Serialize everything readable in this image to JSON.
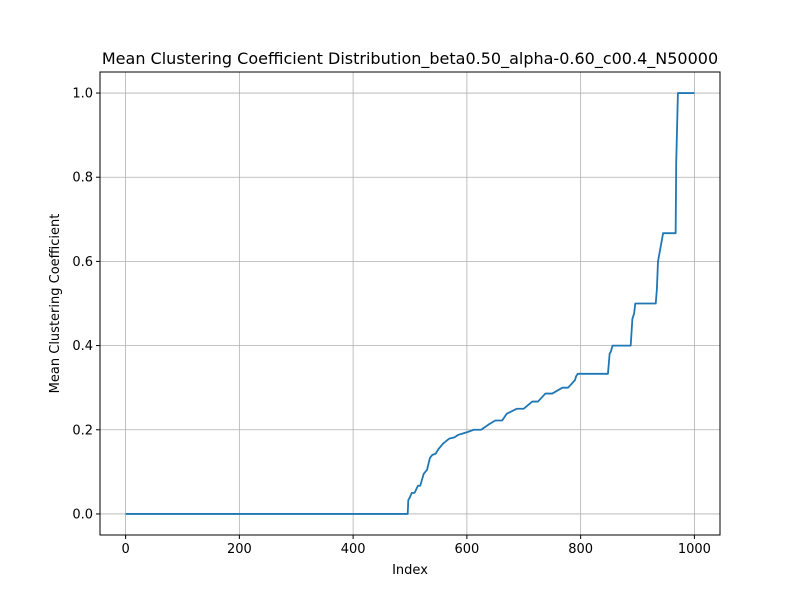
{
  "chart_data": {
    "type": "line",
    "title": "Mean Clustering Coefficient Distribution_beta0.50_alpha-0.60_c00.4_N50000",
    "xlabel": "Index",
    "ylabel": "Mean Clustering Coefficient",
    "xlim": [
      -45,
      1045
    ],
    "ylim": [
      -0.05,
      1.05
    ],
    "xticks": [
      0,
      200,
      400,
      600,
      800,
      1000
    ],
    "xtick_labels": [
      "0",
      "200",
      "400",
      "600",
      "800",
      "1000"
    ],
    "yticks": [
      0.0,
      0.2,
      0.4,
      0.6,
      0.8,
      1.0
    ],
    "ytick_labels": [
      "0.0",
      "0.2",
      "0.4",
      "0.6",
      "0.8",
      "1.0"
    ],
    "grid": true,
    "series": [
      {
        "color": "#1f77b4",
        "x": [
          0,
          496,
          497,
          500,
          503,
          508,
          514,
          518,
          524,
          527,
          530,
          535,
          539,
          545,
          550,
          558,
          569,
          578,
          585,
          590,
          602,
          612,
          625,
          640,
          650,
          662,
          670,
          688,
          700,
          715,
          725,
          738,
          750,
          768,
          778,
          790,
          792,
          795,
          800,
          848,
          851,
          853,
          856,
          863,
          888,
          891,
          894,
          896,
          900,
          932,
          934,
          936,
          945,
          967,
          968,
          971,
          973,
          1000
        ],
        "y": [
          0.0,
          0.0,
          0.033,
          0.04,
          0.05,
          0.05,
          0.067,
          0.067,
          0.095,
          0.1,
          0.105,
          0.133,
          0.14,
          0.143,
          0.154,
          0.167,
          0.179,
          0.182,
          0.188,
          0.19,
          0.195,
          0.2,
          0.2,
          0.214,
          0.222,
          0.222,
          0.238,
          0.25,
          0.25,
          0.267,
          0.267,
          0.286,
          0.286,
          0.3,
          0.3,
          0.318,
          0.327,
          0.333,
          0.333,
          0.333,
          0.381,
          0.385,
          0.4,
          0.4,
          0.4,
          0.464,
          0.476,
          0.5,
          0.5,
          0.5,
          0.533,
          0.6,
          0.667,
          0.667,
          0.833,
          1.0,
          1.0,
          1.0
        ]
      }
    ]
  }
}
